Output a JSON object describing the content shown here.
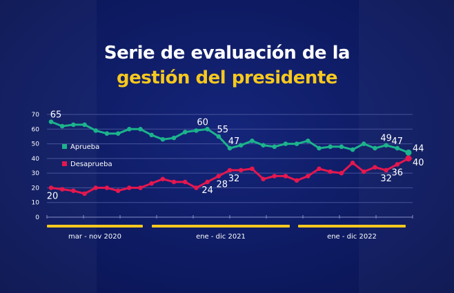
{
  "title_line1": "Serie de evaluación de la",
  "title_line2": "gestión del presidente",
  "colors": {
    "background": "#0e1b63",
    "aprueba": "#1db38c",
    "desaprueba": "#e5174e",
    "period_bar": "#f7c81e",
    "title_accent": "#f7c81e"
  },
  "chart_data": {
    "type": "line",
    "title": "Serie de evaluación de la gestión del presidente",
    "ylim": [
      0,
      70
    ],
    "yticks": [
      0,
      10,
      20,
      30,
      40,
      50,
      60,
      70
    ],
    "grid": true,
    "legend_placement": "left-middle",
    "periods": [
      "mar - nov 2020",
      "ene - dic 2021",
      "ene - dic 2022"
    ],
    "series": [
      {
        "name": "Aprueba",
        "values": [
          65,
          62,
          63,
          63,
          59,
          57,
          57,
          60,
          60,
          56,
          53,
          54,
          58,
          59,
          60,
          55,
          47,
          49,
          52,
          49,
          48,
          50,
          50,
          52,
          47,
          48,
          48,
          46,
          50,
          47,
          49,
          47,
          44
        ],
        "labels": {
          "0": "65",
          "14": "60",
          "15": "55",
          "16": "47",
          "30": "49",
          "31": "47",
          "32": "44"
        }
      },
      {
        "name": "Desaprueba",
        "values": [
          20,
          19,
          18,
          16,
          20,
          20,
          18,
          20,
          20,
          23,
          26,
          24,
          24,
          20,
          24,
          28,
          32,
          32,
          33,
          26,
          28,
          28,
          25,
          28,
          33,
          31,
          30,
          37,
          31,
          34,
          32,
          36,
          40
        ],
        "labels": {
          "0": "20",
          "14": "24",
          "15": "28",
          "16": "32",
          "30": "32",
          "31": "36",
          "32": "40"
        }
      }
    ]
  }
}
